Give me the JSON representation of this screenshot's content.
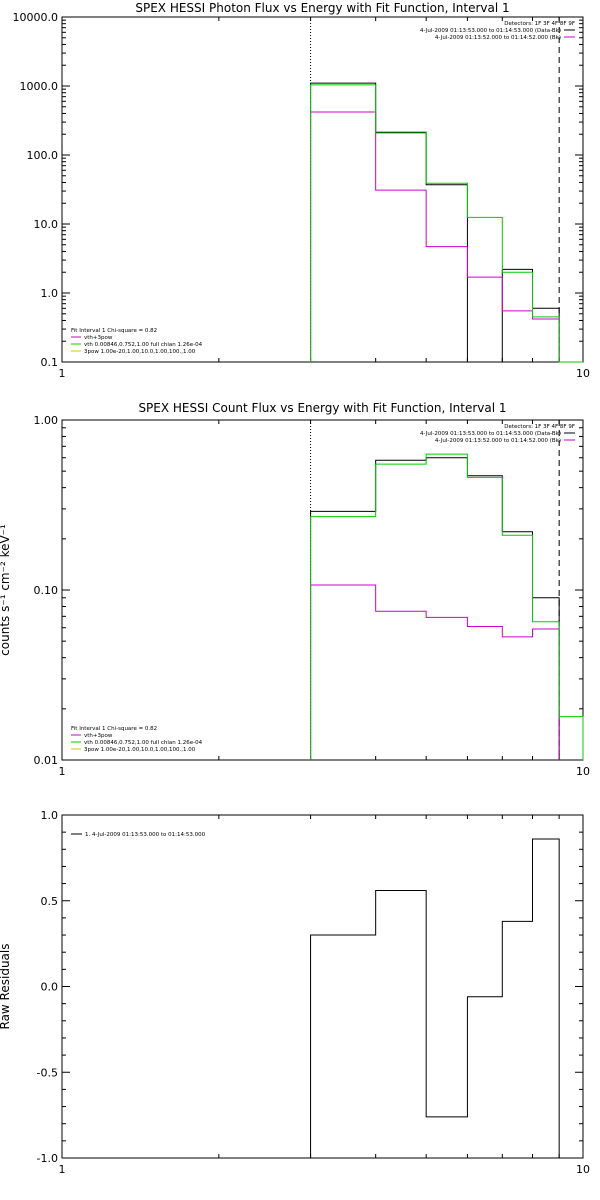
{
  "chart_data": [
    {
      "type": "line",
      "title": "SPEX HESSI Photon Flux vs Energy with Fit Function, Interval 1",
      "xlabel": "",
      "ylabel": "",
      "xscale": "log",
      "yscale": "log",
      "xlim": [
        1,
        10
      ],
      "ylim": [
        0.1,
        10000
      ],
      "x_tick_labels": [
        "1",
        "10"
      ],
      "y_tick_labels": [
        "0.1",
        "1.0",
        "10.0",
        "100.0",
        "1000.0",
        "10000.0"
      ],
      "fit_range_start": 3,
      "fit_range_end": 9,
      "bin_edges": [
        3,
        4,
        5,
        6,
        7,
        8,
        9,
        10
      ],
      "series": [
        {
          "color": "#000000",
          "values": [
            1100,
            210,
            37,
            null,
            2.2,
            0.6,
            null
          ]
        },
        {
          "name": "vth+3pow",
          "color": "#cc00cc",
          "values": [
            420,
            31,
            4.7,
            1.7,
            0.55,
            0.42,
            null
          ]
        },
        {
          "name": "vth 0.00846,0.752,1.00 full chian 1.26e-04",
          "color": "#00cc00",
          "values": [
            1040,
            215,
            39,
            12.5,
            2.0,
            0.45,
            0.1
          ]
        }
      ],
      "legend_header": "Detectors: 1F 3F 4F 8F 9F",
      "legend_data_label": "4-Jul-2009 01:13:53.000 to 01:14:53.000 (Data-Bk)",
      "legend_bk_label": "4-Jul-2009 01:13:52.000 to 01:14:52.000 (Bk)",
      "fit_label": "Fit Interval 1   Chi-square = 0.82",
      "fit_items": [
        {
          "label": "vth+3pow",
          "color": "#cc00cc"
        },
        {
          "label": "vth 0.00846,0.752,1.00  full chian 1.26e-04",
          "color": "#00cc00"
        },
        {
          "label": "3pow 1.00e-20,1.00,10.0,1.00,100.,1.00",
          "color": "#cccc00"
        }
      ]
    },
    {
      "type": "line",
      "title": "SPEX HESSI Count Flux vs Energy with Fit Function, Interval 1",
      "xlabel": "",
      "ylabel": "counts s⁻¹ cm⁻² keV⁻¹",
      "xscale": "log",
      "yscale": "log",
      "xlim": [
        1,
        10
      ],
      "ylim": [
        0.01,
        1.0
      ],
      "x_tick_labels": [
        "1",
        "10"
      ],
      "y_tick_labels": [
        "0.01",
        "0.10",
        "1.00"
      ],
      "fit_range_start": 3,
      "fit_range_end": 9,
      "bin_edges": [
        3,
        4,
        5,
        6,
        7,
        8,
        9,
        10
      ],
      "series": [
        {
          "color": "#000000",
          "values": [
            0.29,
            0.58,
            0.6,
            0.47,
            0.22,
            0.09,
            null
          ]
        },
        {
          "name": "vth+3pow",
          "color": "#cc00cc",
          "values": [
            0.107,
            0.075,
            0.069,
            0.061,
            0.053,
            0.059,
            null
          ]
        },
        {
          "name": "vth 0.00846,0.752,1.00 full chian 1.26e-04",
          "color": "#00cc00",
          "values": [
            0.27,
            0.55,
            0.63,
            0.46,
            0.21,
            0.065,
            0.018
          ]
        }
      ],
      "legend_header": "Detectors: 1F 3F 4F 8F 9F",
      "legend_data_label": "4-Jul-2009 01:13:53.000 to 01:14:53.000 (Data-Bk)",
      "legend_bk_label": "4-Jul-2009 01:13:52.000 to 01:14:52.000 (Bk)",
      "fit_label": "Fit Interval 1   Chi-square = 0.82",
      "fit_items": [
        {
          "label": "vth+3pow",
          "color": "#cc00cc"
        },
        {
          "label": "vth 0.00846,0.752,1.00  full chian 1.26e-04",
          "color": "#00cc00"
        },
        {
          "label": "3pow 1.00e-20,1.00,10.0,1.00,100.,1.00",
          "color": "#cccc00"
        }
      ]
    },
    {
      "type": "line",
      "title": "",
      "xlabel": "",
      "ylabel": "Raw Residuals",
      "xscale": "log",
      "yscale": "linear",
      "xlim": [
        1,
        10
      ],
      "ylim": [
        -1.0,
        1.0
      ],
      "x_tick_labels": [
        "1",
        "10"
      ],
      "y_tick_labels": [
        "-1.0",
        "-0.5",
        "0.0",
        "0.5",
        "1.0"
      ],
      "bin_edges": [
        3,
        4,
        5,
        6,
        7,
        8,
        9
      ],
      "series": [
        {
          "name": "1.  4-Jul-2009 01:13:53.000 to 01:14:53.000",
          "color": "#000000",
          "values": [
            0.3,
            0.56,
            -0.76,
            -0.06,
            0.38,
            0.86
          ]
        }
      ]
    }
  ]
}
